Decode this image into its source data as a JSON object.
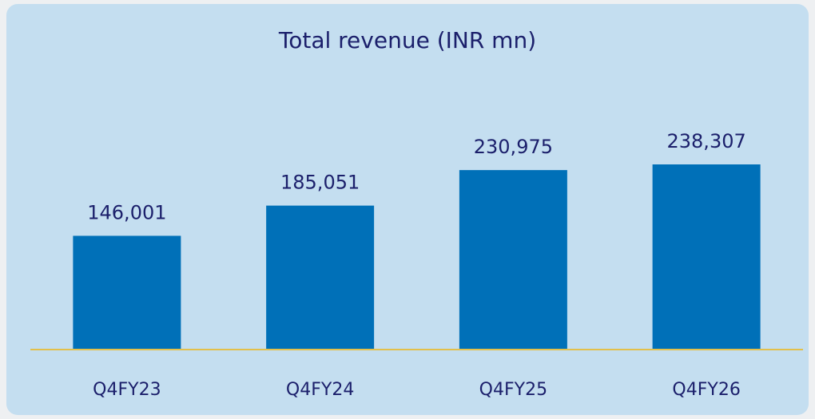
{
  "chart_data": {
    "type": "bar",
    "title": "Total revenue (INR mn)",
    "categories": [
      "Q4FY23",
      "Q4FY24",
      "Q4FY25",
      "Q4FY26"
    ],
    "values": [
      146001,
      185051,
      230975,
      238307
    ],
    "value_labels": [
      "146,001",
      "185,051",
      "230,975",
      "238,307"
    ],
    "color": "#0070b8"
  }
}
